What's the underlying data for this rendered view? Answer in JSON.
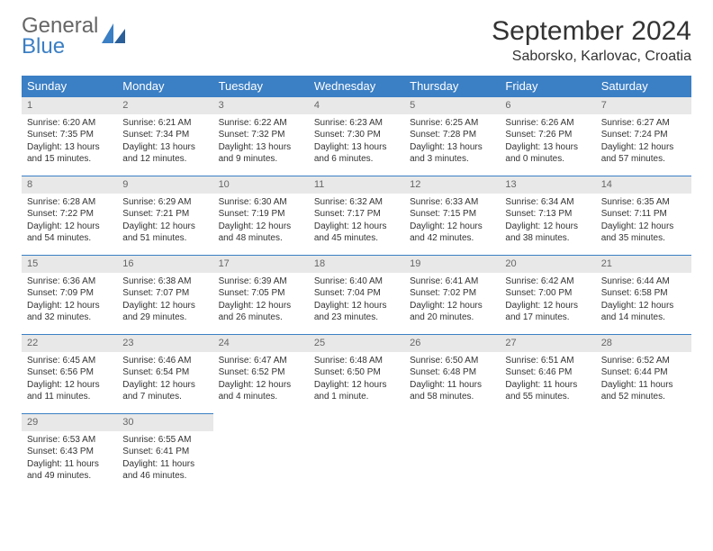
{
  "brand": {
    "top": "General",
    "bottom": "Blue"
  },
  "title": "September 2024",
  "subtitle": "Saborsko, Karlovac, Croatia",
  "colors": {
    "header_bg": "#3b7fc4",
    "header_text": "#ffffff",
    "daynum_bg": "#e8e8e8",
    "daynum_text": "#666666",
    "row_border": "#3b7fc4",
    "brand_blue": "#3b7fc4"
  },
  "weekdays": [
    "Sunday",
    "Monday",
    "Tuesday",
    "Wednesday",
    "Thursday",
    "Friday",
    "Saturday"
  ],
  "weeks": [
    [
      {
        "day": "1",
        "sunrise": "Sunrise: 6:20 AM",
        "sunset": "Sunset: 7:35 PM",
        "daylight": "Daylight: 13 hours and 15 minutes."
      },
      {
        "day": "2",
        "sunrise": "Sunrise: 6:21 AM",
        "sunset": "Sunset: 7:34 PM",
        "daylight": "Daylight: 13 hours and 12 minutes."
      },
      {
        "day": "3",
        "sunrise": "Sunrise: 6:22 AM",
        "sunset": "Sunset: 7:32 PM",
        "daylight": "Daylight: 13 hours and 9 minutes."
      },
      {
        "day": "4",
        "sunrise": "Sunrise: 6:23 AM",
        "sunset": "Sunset: 7:30 PM",
        "daylight": "Daylight: 13 hours and 6 minutes."
      },
      {
        "day": "5",
        "sunrise": "Sunrise: 6:25 AM",
        "sunset": "Sunset: 7:28 PM",
        "daylight": "Daylight: 13 hours and 3 minutes."
      },
      {
        "day": "6",
        "sunrise": "Sunrise: 6:26 AM",
        "sunset": "Sunset: 7:26 PM",
        "daylight": "Daylight: 13 hours and 0 minutes."
      },
      {
        "day": "7",
        "sunrise": "Sunrise: 6:27 AM",
        "sunset": "Sunset: 7:24 PM",
        "daylight": "Daylight: 12 hours and 57 minutes."
      }
    ],
    [
      {
        "day": "8",
        "sunrise": "Sunrise: 6:28 AM",
        "sunset": "Sunset: 7:22 PM",
        "daylight": "Daylight: 12 hours and 54 minutes."
      },
      {
        "day": "9",
        "sunrise": "Sunrise: 6:29 AM",
        "sunset": "Sunset: 7:21 PM",
        "daylight": "Daylight: 12 hours and 51 minutes."
      },
      {
        "day": "10",
        "sunrise": "Sunrise: 6:30 AM",
        "sunset": "Sunset: 7:19 PM",
        "daylight": "Daylight: 12 hours and 48 minutes."
      },
      {
        "day": "11",
        "sunrise": "Sunrise: 6:32 AM",
        "sunset": "Sunset: 7:17 PM",
        "daylight": "Daylight: 12 hours and 45 minutes."
      },
      {
        "day": "12",
        "sunrise": "Sunrise: 6:33 AM",
        "sunset": "Sunset: 7:15 PM",
        "daylight": "Daylight: 12 hours and 42 minutes."
      },
      {
        "day": "13",
        "sunrise": "Sunrise: 6:34 AM",
        "sunset": "Sunset: 7:13 PM",
        "daylight": "Daylight: 12 hours and 38 minutes."
      },
      {
        "day": "14",
        "sunrise": "Sunrise: 6:35 AM",
        "sunset": "Sunset: 7:11 PM",
        "daylight": "Daylight: 12 hours and 35 minutes."
      }
    ],
    [
      {
        "day": "15",
        "sunrise": "Sunrise: 6:36 AM",
        "sunset": "Sunset: 7:09 PM",
        "daylight": "Daylight: 12 hours and 32 minutes."
      },
      {
        "day": "16",
        "sunrise": "Sunrise: 6:38 AM",
        "sunset": "Sunset: 7:07 PM",
        "daylight": "Daylight: 12 hours and 29 minutes."
      },
      {
        "day": "17",
        "sunrise": "Sunrise: 6:39 AM",
        "sunset": "Sunset: 7:05 PM",
        "daylight": "Daylight: 12 hours and 26 minutes."
      },
      {
        "day": "18",
        "sunrise": "Sunrise: 6:40 AM",
        "sunset": "Sunset: 7:04 PM",
        "daylight": "Daylight: 12 hours and 23 minutes."
      },
      {
        "day": "19",
        "sunrise": "Sunrise: 6:41 AM",
        "sunset": "Sunset: 7:02 PM",
        "daylight": "Daylight: 12 hours and 20 minutes."
      },
      {
        "day": "20",
        "sunrise": "Sunrise: 6:42 AM",
        "sunset": "Sunset: 7:00 PM",
        "daylight": "Daylight: 12 hours and 17 minutes."
      },
      {
        "day": "21",
        "sunrise": "Sunrise: 6:44 AM",
        "sunset": "Sunset: 6:58 PM",
        "daylight": "Daylight: 12 hours and 14 minutes."
      }
    ],
    [
      {
        "day": "22",
        "sunrise": "Sunrise: 6:45 AM",
        "sunset": "Sunset: 6:56 PM",
        "daylight": "Daylight: 12 hours and 11 minutes."
      },
      {
        "day": "23",
        "sunrise": "Sunrise: 6:46 AM",
        "sunset": "Sunset: 6:54 PM",
        "daylight": "Daylight: 12 hours and 7 minutes."
      },
      {
        "day": "24",
        "sunrise": "Sunrise: 6:47 AM",
        "sunset": "Sunset: 6:52 PM",
        "daylight": "Daylight: 12 hours and 4 minutes."
      },
      {
        "day": "25",
        "sunrise": "Sunrise: 6:48 AM",
        "sunset": "Sunset: 6:50 PM",
        "daylight": "Daylight: 12 hours and 1 minute."
      },
      {
        "day": "26",
        "sunrise": "Sunrise: 6:50 AM",
        "sunset": "Sunset: 6:48 PM",
        "daylight": "Daylight: 11 hours and 58 minutes."
      },
      {
        "day": "27",
        "sunrise": "Sunrise: 6:51 AM",
        "sunset": "Sunset: 6:46 PM",
        "daylight": "Daylight: 11 hours and 55 minutes."
      },
      {
        "day": "28",
        "sunrise": "Sunrise: 6:52 AM",
        "sunset": "Sunset: 6:44 PM",
        "daylight": "Daylight: 11 hours and 52 minutes."
      }
    ],
    [
      {
        "day": "29",
        "sunrise": "Sunrise: 6:53 AM",
        "sunset": "Sunset: 6:43 PM",
        "daylight": "Daylight: 11 hours and 49 minutes."
      },
      {
        "day": "30",
        "sunrise": "Sunrise: 6:55 AM",
        "sunset": "Sunset: 6:41 PM",
        "daylight": "Daylight: 11 hours and 46 minutes."
      },
      null,
      null,
      null,
      null,
      null
    ]
  ]
}
